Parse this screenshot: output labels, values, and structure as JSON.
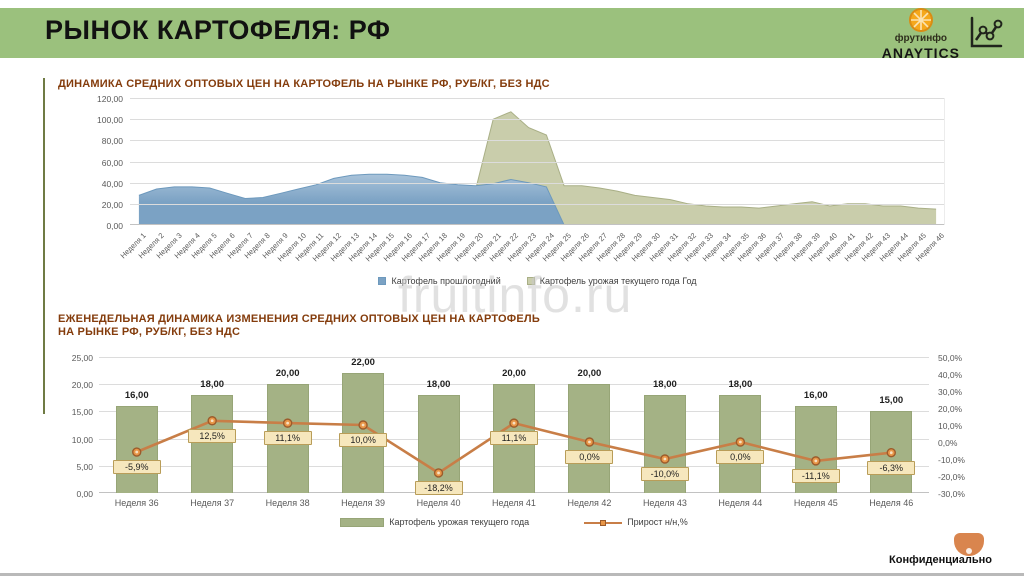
{
  "header": {
    "title": "РЫНОК КАРТОФЕЛЯ: РФ",
    "logo": {
      "brand": "фрутинфо",
      "product": "ANAYTICS"
    }
  },
  "watermark": "fruitinfo.ru",
  "footer": {
    "confidential": "Конфиденциально"
  },
  "colors": {
    "header_bg": "#9bc17d",
    "title_brown": "#843c0c",
    "accent_line": "#6f7b44",
    "blue_fill": "#7ba2c4",
    "blue_fill_light": "#a9c3da",
    "blue_stroke": "#6d99bd",
    "green_fill": "#c9cdab",
    "green_stroke": "#a9af86",
    "bar_fill": "#a4b285",
    "bar_stroke": "#97a577",
    "line_color": "#c87e47",
    "marker_fill": "#e89647",
    "marker_stroke": "#9c5b2b",
    "label_box_bg": "#f6e7bd",
    "label_box_border": "#b99d58",
    "conf_icon": "#d9854e",
    "axis_text": "#595959"
  },
  "chart_data": [
    {
      "type": "area",
      "title": "ДИНАМИКА СРЕДНИХ ОПТОВЫХ ЦЕН НА КАРТОФЕЛЬ НА РЫНКЕ РФ, РУБ/КГ, БЕЗ НДС",
      "ylim": [
        0,
        120
      ],
      "y_ticks": [
        "120,00",
        "100,00",
        "80,00",
        "60,00",
        "40,00",
        "20,00",
        "0,00"
      ],
      "grid": true,
      "legend_position": "bottom",
      "x_labels": [
        "Неделя 1",
        "Неделя 2",
        "Неделя 3",
        "Неделя 4",
        "Неделя 5",
        "Неделя 6",
        "Неделя 7",
        "Неделя 8",
        "Неделя 9",
        "Неделя 10",
        "Неделя 11",
        "Неделя 12",
        "Неделя 13",
        "Неделя 14",
        "Неделя 15",
        "Неделя 16",
        "Неделя 17",
        "Неделя 18",
        "Неделя 19",
        "Неделя 20",
        "Неделя 21",
        "Неделя 22",
        "Неделя 23",
        "Неделя 24",
        "Неделя 25",
        "Неделя 26",
        "Неделя 27",
        "Неделя 28",
        "Неделя 29",
        "Неделя 30",
        "Неделя 31",
        "Неделя 32",
        "Неделя 33",
        "Неделя 34",
        "Неделя 35",
        "Неделя 36",
        "Неделя 37",
        "Неделя 38",
        "Неделя 39",
        "Неделя 40",
        "Неделя 41",
        "Неделя 42",
        "Неделя 43",
        "Неделя 44",
        "Неделя 45",
        "Неделя 46"
      ],
      "series": [
        {
          "name": "Картофель прошлогодний",
          "values": [
            28,
            34,
            36,
            36,
            35,
            30,
            25,
            26,
            30,
            34,
            38,
            44,
            47,
            48,
            48,
            47,
            45,
            40,
            38,
            37,
            39,
            43,
            40,
            36,
            0,
            null,
            null,
            null,
            null,
            null,
            null,
            null,
            null,
            null,
            null,
            null,
            null,
            null,
            null,
            null,
            null,
            null,
            null,
            null,
            null,
            null
          ]
        },
        {
          "name": "Картофель урожая текущего года Год",
          "values": [
            null,
            null,
            null,
            null,
            null,
            null,
            null,
            null,
            null,
            null,
            null,
            null,
            null,
            null,
            null,
            null,
            null,
            null,
            null,
            33,
            100,
            107,
            92,
            85,
            37,
            37,
            35,
            32,
            28,
            26,
            24,
            20,
            18,
            17,
            17,
            16,
            18,
            20,
            22,
            18,
            20,
            20,
            18,
            18,
            16,
            15
          ]
        }
      ]
    },
    {
      "type": "bar+line",
      "title_line1": "ЕЖЕНЕДЕЛЬНАЯ ДИНАМИКА ИЗМЕНЕНИЯ СРЕДНИХ ОПТОВЫХ ЦЕН НА КАРТОФЕЛЬ",
      "title_line2": "НА РЫНКЕ РФ, РУБ/КГ, БЕЗ НДС",
      "categories": [
        "Неделя 36",
        "Неделя 37",
        "Неделя 38",
        "Неделя 39",
        "Неделя 40",
        "Неделя 41",
        "Неделя 42",
        "Неделя 43",
        "Неделя 44",
        "Неделя 45",
        "Неделя 46"
      ],
      "bars": {
        "name": "Картофель урожая текущего года",
        "values": [
          16,
          18,
          20,
          22,
          18,
          20,
          20,
          18,
          18,
          16,
          15
        ],
        "labels": [
          "16,00",
          "18,00",
          "20,00",
          "22,00",
          "18,00",
          "20,00",
          "20,00",
          "18,00",
          "18,00",
          "16,00",
          "15,00"
        ]
      },
      "line": {
        "name": "Прирост н/н,%",
        "values": [
          -5.9,
          12.5,
          11.1,
          10.0,
          -18.2,
          11.1,
          0.0,
          -10.0,
          0.0,
          -11.1,
          -6.3
        ],
        "labels": [
          "-5,9%",
          "12,5%",
          "11,1%",
          "10,0%",
          "-18,2%",
          "11,1%",
          "0,0%",
          "-10,0%",
          "0,0%",
          "-11,1%",
          "-6,3%"
        ]
      },
      "left_axis": {
        "min": 0,
        "max": 25,
        "ticks": [
          "25,00",
          "20,00",
          "15,00",
          "10,00",
          "5,00",
          "0,00"
        ]
      },
      "right_axis": {
        "min": -30,
        "max": 50,
        "ticks": [
          "50,0%",
          "40,0%",
          "30,0%",
          "20,0%",
          "10,0%",
          "0,0%",
          "-10,0%",
          "-20,0%",
          "-30,0%"
        ]
      },
      "grid": true,
      "legend_position": "bottom"
    }
  ]
}
